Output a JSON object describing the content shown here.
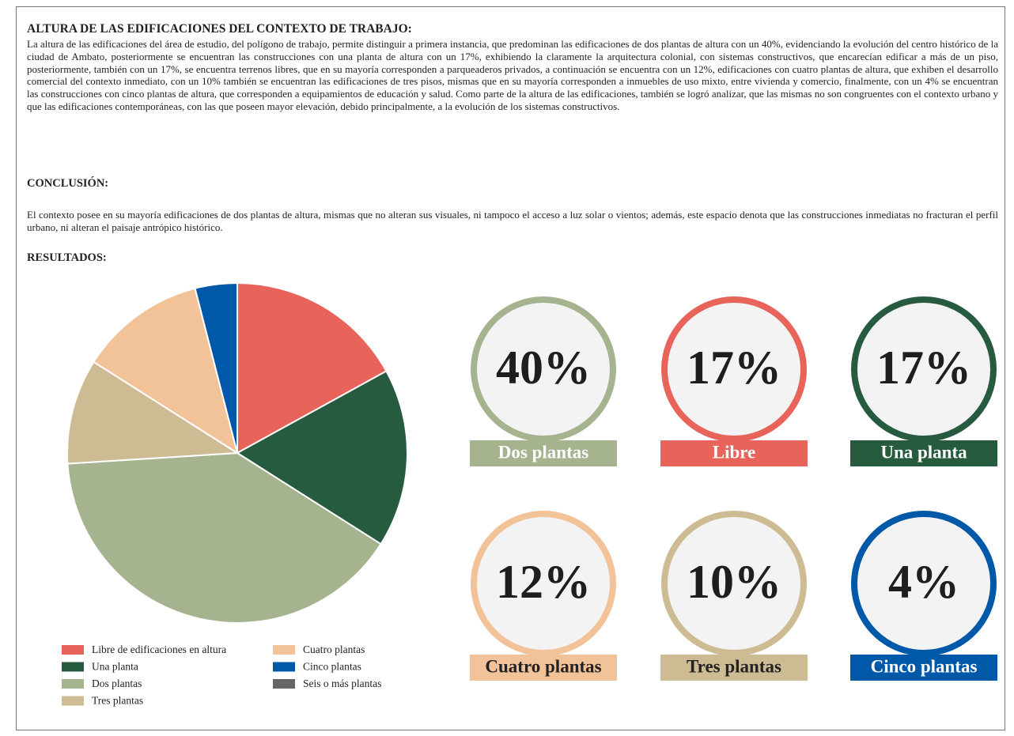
{
  "document": {
    "heading": "ALTURA DE LAS EDIFICACIONES DEL CONTEXTO DE TRABAJO:",
    "paragraph": "La altura de las edificaciones del área de estudio, del polígono de trabajo, permite distinguir a primera instancia, que predominan las edificaciones de dos plantas de altura con un 40%, evidenciando la evolución del centro histórico de la ciudad de Ambato, posteriormente se encuentran las construcciones con una planta de altura con un 17%, exhibiendo la claramente la arquitectura colonial, con sistemas constructivos, que encarecían edificar a más de un piso, posteriormente, también con un 17%, se encuentra terrenos libres, que en su mayoría corresponden a parqueaderos privados, a continuación se encuentra con un 12%, edificaciones con cuatro plantas de altura, que exhiben el desarrollo comercial del contexto inmediato, con un 10% también se encuentran las edificaciones de tres pisos, mismas que en su mayoría corresponden a inmuebles de uso mixto, entre vivienda y comercio, finalmente, con un 4% se encuentran las construcciones con cinco plantas de altura, que corresponden a equipamientos de educación y salud. Como parte de la altura de las edificaciones, también se logró analizar, que las mismas no son congruentes con el contexto urbano y que las edificaciones contemporáneas, con las que poseen mayor elevación, debido principalmente, a la evolución de los sistemas constructivos.",
    "conclusion_heading": "CONCLUSIÓN:",
    "conclusion": "El contexto posee en su mayoría edificaciones de dos plantas de altura, mismas que no alteran sus visuales, ni tampoco el acceso a luz solar o vientos; además, este espacio denota que las construcciones inmediatas no fracturan el perfil urbano, ni alteran el paisaje antrópico histórico.",
    "results_heading": "RESULTADOS:",
    "cards": [
      {
        "value": "40%",
        "label": "Dos plantas",
        "color": "#a5b38f",
        "text_color": "#ffffff"
      },
      {
        "value": "17%",
        "label": "Libre",
        "color": "#e8635a",
        "text_color": "#ffffff"
      },
      {
        "value": "17%",
        "label": "Una planta",
        "color": "#275b40",
        "text_color": "#ffffff"
      },
      {
        "value": "12%",
        "label": "Cuatro plantas",
        "color": "#f2c299",
        "text_color": "#222222"
      },
      {
        "value": "10%",
        "label": "Tres plantas",
        "color": "#cdbb93",
        "text_color": "#222222"
      },
      {
        "value": "4%",
        "label": "Cinco plantas",
        "color": "#0059a8",
        "text_color": "#ffffff"
      }
    ]
  },
  "chart_data": {
    "type": "pie",
    "categories": [
      "Libre de edificaciones en altura",
      "Una planta",
      "Dos plantas",
      "Tres plantas",
      "Cuatro plantas",
      "Cinco plantas",
      "Seis o más plantas"
    ],
    "values": [
      17,
      17,
      40,
      10,
      12,
      4,
      0
    ],
    "colors": [
      "#e8635a",
      "#275b40",
      "#a5b38f",
      "#cdbb93",
      "#f2c299",
      "#0059a8",
      "#666666"
    ]
  }
}
